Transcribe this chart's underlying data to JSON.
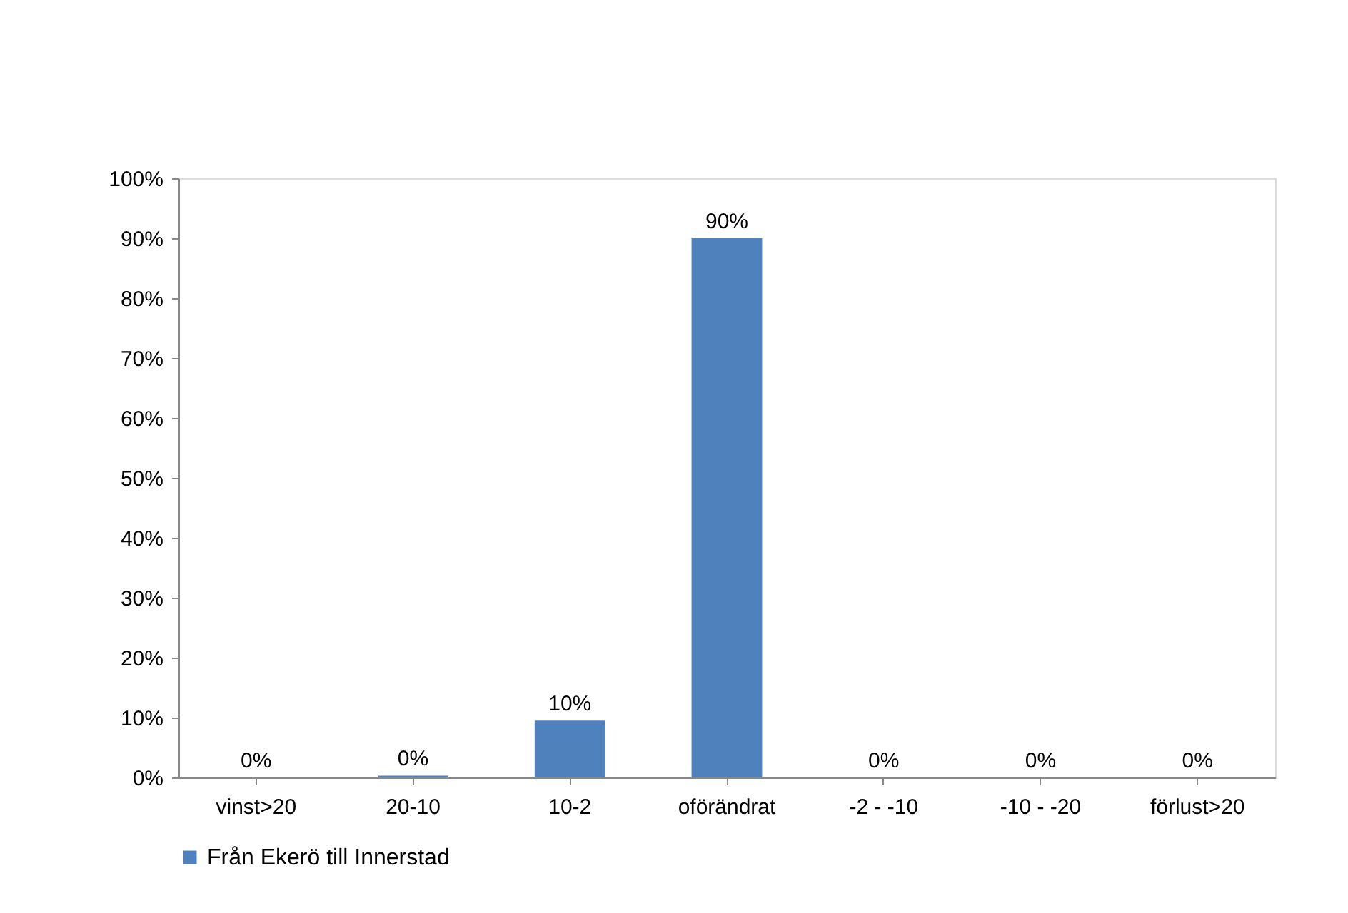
{
  "chart_data": {
    "type": "bar",
    "categories": [
      "vinst>20",
      "20-10",
      "10-2",
      "oförändrat",
      "-2 - -10",
      "-10 - -20",
      "förlust>20"
    ],
    "series": [
      {
        "name": "Från Ekerö till Innerstad",
        "color": "#4f81bd",
        "values": [
          0,
          0.3,
          9.5,
          90,
          0,
          0,
          0
        ],
        "value_labels": [
          "0%",
          "0%",
          "10%",
          "90%",
          "0%",
          "0%",
          "0%"
        ]
      }
    ],
    "ylim": [
      0,
      100
    ],
    "yticks": [
      {
        "value": 0,
        "label": "0%"
      },
      {
        "value": 10,
        "label": "10%"
      },
      {
        "value": 20,
        "label": "20%"
      },
      {
        "value": 30,
        "label": "30%"
      },
      {
        "value": 40,
        "label": "40%"
      },
      {
        "value": 50,
        "label": "50%"
      },
      {
        "value": 60,
        "label": "60%"
      },
      {
        "value": 70,
        "label": "70%"
      },
      {
        "value": 80,
        "label": "80%"
      },
      {
        "value": 90,
        "label": "90%"
      },
      {
        "value": 100,
        "label": "100%"
      }
    ],
    "grid": false,
    "legend": "bottom"
  }
}
